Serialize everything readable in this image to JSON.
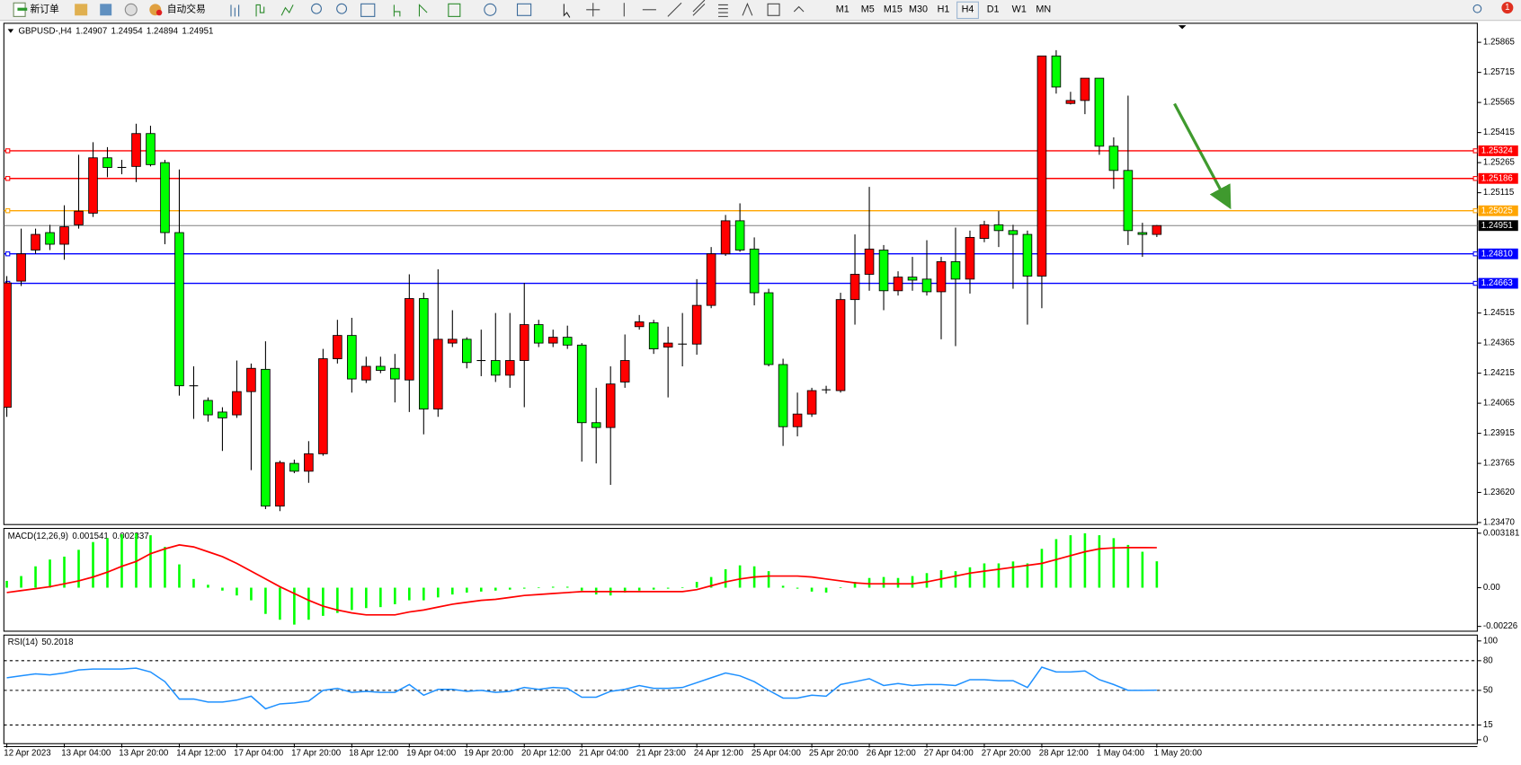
{
  "toolbar": {
    "buttons": [
      "新订单",
      "自动交易"
    ],
    "timeframes": [
      "M1",
      "M5",
      "M15",
      "M30",
      "H1",
      "H4",
      "D1",
      "W1",
      "MN"
    ],
    "notifications": 1
  },
  "chart_data": [
    {
      "type": "candlestick",
      "title": "GBPUSD-,H4",
      "categories": [
        "12 Apr 2023",
        null,
        null,
        null,
        "13 Apr 04:00",
        null,
        null,
        null,
        "13 Apr 20:00",
        null,
        null,
        null,
        "14 Apr 12:00",
        null,
        null,
        null,
        "17 Apr 04:00",
        null,
        null,
        null,
        "17 Apr 20:00",
        null,
        null,
        null,
        "18 Apr 12:00",
        null,
        null,
        null,
        "19 Apr 04:00",
        null,
        null,
        null,
        "19 Apr 20:00",
        null,
        null,
        null,
        "20 Apr 12:00",
        null,
        null,
        null,
        "21 Apr 04:00",
        null,
        null,
        null,
        "21 Apr 23:00",
        null,
        null,
        null,
        "24 Apr 12:00",
        null,
        null,
        null,
        "25 Apr 04:00",
        null,
        null,
        null,
        "25 Apr 20:00",
        null,
        null,
        null,
        "26 Apr 12:00",
        null,
        null,
        null,
        "27 Apr 04:00",
        null,
        null,
        null,
        "27 Apr 20:00",
        null,
        null,
        null,
        "28 Apr 12:00",
        null,
        null,
        null,
        "1 May 04:00",
        null,
        null,
        null,
        "1 May 20:00"
      ],
      "open": [
        1.24045,
        1.24674,
        1.24829,
        1.24916,
        1.24858,
        1.24955,
        1.25013,
        1.25289,
        1.25241,
        1.25246,
        1.2541,
        1.25265,
        1.24916,
        1.24152,
        1.24079,
        1.24021,
        1.24007,
        1.24123,
        1.24234,
        1.23552,
        1.23765,
        1.23726,
        1.23813,
        1.24287,
        1.24403,
        1.24181,
        1.24249,
        1.24239,
        1.24181,
        1.24587,
        1.24036,
        1.24365,
        1.24384,
        1.24278,
        1.24278,
        1.24205,
        1.24278,
        1.24457,
        1.24365,
        1.24394,
        1.24355,
        1.23968,
        1.23944,
        1.24171,
        1.24447,
        1.24466,
        1.24345,
        1.2436,
        1.2436,
        1.24553,
        1.2481,
        1.24975,
        1.24834,
        1.24616,
        1.24258,
        1.23948,
        1.24011,
        1.24132,
        1.24128,
        1.24582,
        1.24708,
        1.24829,
        1.24626,
        1.24694,
        1.24684,
        1.24621,
        1.24771,
        1.24684,
        1.24887,
        1.24955,
        1.24926,
        1.24907,
        1.24699,
        1.25797,
        1.2556,
        1.25575,
        1.25686,
        1.25347,
        1.25226,
        1.24916,
        1.24907
      ],
      "high": [
        1.24699,
        1.24936,
        1.24936,
        1.24955,
        1.25052,
        1.25304,
        1.25367,
        1.25342,
        1.25279,
        1.25459,
        1.25449,
        1.25279,
        1.25231,
        1.24249,
        1.24094,
        1.24045,
        1.24278,
        1.24263,
        1.24374,
        1.23779,
        1.23784,
        1.23876,
        1.24336,
        1.24481,
        1.24491,
        1.24297,
        1.24297,
        1.24311,
        1.24708,
        1.24616,
        1.24733,
        1.24529,
        1.24394,
        1.24432,
        1.24515,
        1.24515,
        1.24665,
        1.24481,
        1.24432,
        1.24452,
        1.24365,
        1.24142,
        1.24249,
        1.24408,
        1.24505,
        1.24481,
        1.24447,
        1.24515,
        1.24684,
        1.24844,
        1.25004,
        1.25062,
        1.24892,
        1.24636,
        1.24287,
        1.24118,
        1.24142,
        1.24152,
        1.24616,
        1.24907,
        1.25144,
        1.24854,
        1.24723,
        1.24795,
        1.24878,
        1.24795,
        1.24941,
        1.24926,
        1.24975,
        1.25023,
        1.24955,
        1.24926,
        1.25797,
        1.25826,
        1.25618,
        1.25686,
        1.25686,
        1.25391,
        1.25599,
        1.24965,
        1.24954
      ],
      "low": [
        1.23997,
        1.2465,
        1.2481,
        1.24829,
        1.24781,
        1.24936,
        1.24994,
        1.25192,
        1.25207,
        1.25168,
        1.25246,
        1.24858,
        1.24103,
        1.23987,
        1.23973,
        1.23827,
        1.23992,
        1.23731,
        1.23537,
        1.23527,
        1.23716,
        1.23668,
        1.23803,
        1.24263,
        1.24118,
        1.24166,
        1.24215,
        1.24069,
        1.24021,
        1.2391,
        1.23997,
        1.24345,
        1.24239,
        1.242,
        1.24171,
        1.24142,
        1.24045,
        1.24345,
        1.24345,
        1.24336,
        1.23774,
        1.23765,
        1.23658,
        1.24142,
        1.24432,
        1.24311,
        1.24094,
        1.24249,
        1.24307,
        1.24539,
        1.248,
        1.2482,
        1.24553,
        1.24249,
        1.23852,
        1.239,
        1.23997,
        1.24113,
        1.24118,
        1.24457,
        1.24626,
        1.24529,
        1.24602,
        1.24626,
        1.24602,
        1.24384,
        1.2435,
        1.24612,
        1.24868,
        1.24844,
        1.24636,
        1.24457,
        1.24539,
        1.25609,
        1.25555,
        1.25507,
        1.25304,
        1.25134,
        1.24854,
        1.24795,
        1.24894
      ],
      "close": [
        1.24665,
        1.2481,
        1.24907,
        1.24858,
        1.24945,
        1.25023,
        1.25289,
        1.25241,
        1.25241,
        1.2541,
        1.25255,
        1.24916,
        1.24152,
        1.24152,
        1.24007,
        1.23992,
        1.24123,
        1.24239,
        1.23552,
        1.23769,
        1.23726,
        1.23813,
        1.24287,
        1.24403,
        1.24186,
        1.24249,
        1.24229,
        1.24186,
        1.24587,
        1.24036,
        1.24384,
        1.24384,
        1.24268,
        1.24278,
        1.24205,
        1.24278,
        1.24457,
        1.24365,
        1.24394,
        1.24355,
        1.23968,
        1.23944,
        1.24161,
        1.24278,
        1.24471,
        1.24336,
        1.24365,
        1.2436,
        1.24553,
        1.2481,
        1.24975,
        1.24829,
        1.24616,
        1.24258,
        1.23948,
        1.24011,
        1.24128,
        1.24132,
        1.24582,
        1.24708,
        1.24834,
        1.24626,
        1.24694,
        1.24679,
        1.24621,
        1.24771,
        1.24684,
        1.24892,
        1.24955,
        1.24926,
        1.24907,
        1.24699,
        1.25797,
        1.25642,
        1.25575,
        1.25686,
        1.25347,
        1.25226,
        1.24926,
        1.24907,
        1.24951
      ],
      "up_color": "#ff0000",
      "down_color": "#00ff00",
      "ylim": [
        1.2346,
        1.2596
      ],
      "yticks": [
        1.25865,
        1.25715,
        1.25565,
        1.25415,
        1.25265,
        1.25115,
        1.24515,
        1.24365,
        1.24215,
        1.24065,
        1.23915,
        1.23765,
        {
          "value": 1.2362,
          "label": "1.23620"
        },
        {
          "value": 1.2347,
          "label": "1.23470"
        }
      ],
      "levels": [
        {
          "value": 1.25324,
          "color": "#ff0000"
        },
        {
          "value": 1.25186,
          "color": "#ff0000"
        },
        {
          "value": 1.25025,
          "color": "#ffa500"
        },
        {
          "value": 1.2481,
          "label": "1.24810",
          "color": "#0000ff"
        },
        {
          "value": 1.24663,
          "color": "#0000ff"
        }
      ]
    },
    {
      "type": "macd",
      "title": "MACD(12,26,9)",
      "series": [
        {
          "color": "#00ff00",
          "values": [
            0.000397,
            0.00068,
            0.001247,
            0.001644,
            0.001814,
            0.002211,
            0.002665,
            0.002892,
            0.003119,
            0.003175,
            0.003062,
            0.002381,
            0.001361,
            0.00051,
            0.00017,
            -0.00017,
            -0.000454,
            -0.000737,
            -0.001531,
            -0.001871,
            -0.002155,
            -0.001871,
            -0.001644,
            -0.001474,
            -0.001304,
            -0.001191,
            -0.001134,
            -0.000964,
            -0.000737,
            -0.000737,
            -0.000567,
            -0.000397,
            -0.000284,
            -0.000227,
            -0.00017,
            -0.000113,
            -5.7e-05,
            2e-05,
            5.7e-05,
            5.7e-05,
            -0.00017,
            -0.000397,
            -0.000454,
            -0.000284,
            -0.00017,
            -0.000113,
            -5.7e-05,
            2e-05,
            0.00034,
            0.000624,
            0.001077,
            0.001304,
            0.001247,
            0.000964,
            0.000113,
            -5.7e-05,
            -0.000227,
            -0.000284,
            2e-05,
            0.00034,
            0.000567,
            0.000624,
            0.000567,
            0.00068,
            0.000851,
            0.001021,
            0.000964,
            0.001191,
            0.001418,
            0.001418,
            0.001531,
            0.001418,
            0.002268,
            0.002835,
            0.003062,
            0.003175,
            0.003062,
            0.002892,
            0.002495,
            0.002098,
            0.001541
          ]
        },
        {
          "color": "#ff0000",
          "values": [
            -0.000284,
            -0.00017,
            -5.7e-05,
            5.7e-05,
            0.000227,
            0.000397,
            0.000624,
            0.000907,
            0.001247,
            0.001531,
            0.001985,
            0.002268,
            0.002495,
            0.002381,
            0.002098,
            0.001814,
            0.001418,
            0.000964,
            0.00051,
            5.7e-05,
            -0.00034,
            -0.000737,
            -0.001077,
            -0.001304,
            -0.001474,
            -0.001588,
            -0.001588,
            -0.001588,
            -0.001418,
            -0.001304,
            -0.001134,
            -0.000964,
            -0.000851,
            -0.000737,
            -0.00068,
            -0.000567,
            -0.000454,
            -0.000397,
            -0.00034,
            -0.000284,
            -0.000227,
            -0.000227,
            -0.000227,
            -0.000227,
            -0.000227,
            -0.000227,
            -0.000227,
            -0.000227,
            -0.000113,
            0.000113,
            0.00034,
            0.00051,
            0.000624,
            0.00068,
            0.00068,
            0.00068,
            0.000624,
            0.00051,
            0.000397,
            0.000284,
            0.000227,
            0.000227,
            0.000227,
            0.000227,
            0.00034,
            0.00051,
            0.00068,
            0.000851,
            0.000964,
            0.001077,
            0.001191,
            0.001304,
            0.001418,
            0.001644,
            0.001871,
            0.002098,
            0.002268,
            0.002324,
            0.002338,
            0.00234,
            0.002337
          ]
        }
      ],
      "ylim": [
        -0.00254,
        0.00346
      ],
      "yticks": [
        0.003181,
        {
          "value": 0,
          "label": "0.00"
        },
        -0.00226
      ]
    },
    {
      "type": "line",
      "title": "RSI(14)",
      "series": [
        {
          "color": "#1e90ff",
          "values": [
            62.7,
            64.7,
            66.7,
            65.7,
            67.6,
            70.6,
            71.6,
            71.6,
            71.6,
            72.5,
            68.6,
            58.8,
            41.2,
            41.2,
            38.2,
            38.2,
            40.2,
            44.1,
            31.4,
            36.3,
            37.3,
            39.2,
            50,
            52,
            48,
            49,
            48,
            48,
            55.9,
            45.1,
            51,
            51,
            49,
            50,
            48,
            49,
            52.9,
            51,
            52.9,
            52,
            43.1,
            43.1,
            49,
            51,
            54.9,
            52,
            52,
            52.9,
            57.8,
            62.7,
            67.6,
            64.7,
            58.8,
            50,
            42.2,
            42.2,
            45.1,
            44.1,
            55.9,
            58.8,
            61.8,
            54.9,
            56.9,
            54.9,
            55.9,
            55.9,
            54.9,
            60.8,
            60.8,
            59.8,
            59.8,
            52.9,
            73.5,
            68.6,
            68.6,
            69.6,
            60.8,
            55.9,
            50,
            50,
            50.2018
          ]
        }
      ],
      "ylim": [
        -3.9,
        105.9
      ],
      "yticks": [
        100,
        80,
        50,
        15,
        0
      ],
      "levels": [
        80,
        50,
        15
      ]
    }
  ]
}
